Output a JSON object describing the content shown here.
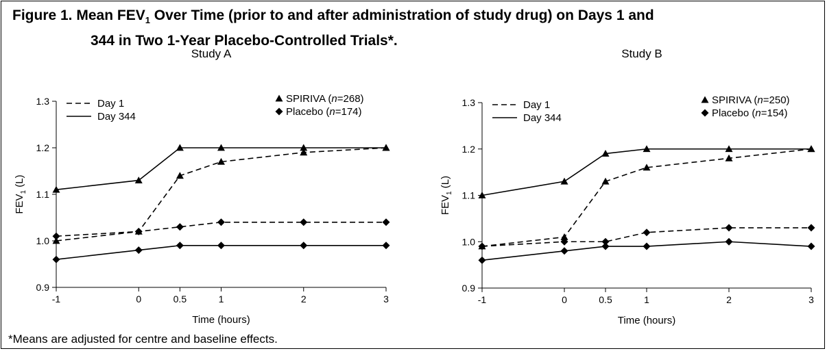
{
  "figure": {
    "title_prefix": "Figure 1. Mean FEV",
    "title_sub": "1",
    "title_line1_rest": " Over Time (prior to and after administration of study drug) on Days 1 and",
    "title_line2": "344 in Two 1-Year Placebo-Controlled Trials*.",
    "footnote": "*Means are adjusted for centre and baseline effects."
  },
  "chart_data": [
    {
      "type": "line",
      "title": "Study A",
      "xlabel": "Time (hours)",
      "ylabel_main": "FEV",
      "ylabel_sub": "1",
      "ylabel_unit": " (L)",
      "x": [
        -1,
        0,
        0.5,
        1,
        2,
        3
      ],
      "x_tick_labels": [
        "-1",
        "0",
        "0.5",
        "1",
        "2",
        "3"
      ],
      "ylim": [
        0.9,
        1.3
      ],
      "y_ticks": [
        0.9,
        1.0,
        1.1,
        1.2,
        1.3
      ],
      "y_tick_labels": [
        "0.9",
        "1.0",
        "1.1",
        "1.2",
        "1.3"
      ],
      "legend_lines": [
        {
          "label": "Day 1",
          "style": "dashed"
        },
        {
          "label": "Day 344",
          "style": "solid"
        }
      ],
      "legend_markers": [
        {
          "prefix": "SPIRIVA (",
          "n": "n",
          "suffix": "=268)",
          "marker": "triangle"
        },
        {
          "prefix": "Placebo (",
          "n": "n",
          "suffix": "=174)",
          "marker": "diamond"
        }
      ],
      "series": [
        {
          "group": "SPIRIVA",
          "day": "Day 1",
          "marker": "triangle",
          "style": "dashed",
          "values": [
            1.0,
            1.02,
            1.14,
            1.17,
            1.19,
            1.2
          ]
        },
        {
          "group": "SPIRIVA",
          "day": "Day 344",
          "marker": "triangle",
          "style": "solid",
          "values": [
            1.11,
            1.13,
            1.2,
            1.2,
            1.2,
            1.2
          ]
        },
        {
          "group": "Placebo",
          "day": "Day 1",
          "marker": "diamond",
          "style": "dashed",
          "values": [
            1.01,
            1.02,
            1.03,
            1.04,
            1.04,
            1.04
          ]
        },
        {
          "group": "Placebo",
          "day": "Day 344",
          "marker": "diamond",
          "style": "solid",
          "values": [
            0.96,
            0.98,
            0.99,
            0.99,
            0.99,
            0.99
          ]
        }
      ]
    },
    {
      "type": "line",
      "title": "Study B",
      "xlabel": "Time (hours)",
      "ylabel_main": "FEV",
      "ylabel_sub": "1",
      "ylabel_unit": " (L)",
      "x": [
        -1,
        0,
        0.5,
        1,
        2,
        3
      ],
      "x_tick_labels": [
        "-1",
        "0",
        "0.5",
        "1",
        "2",
        "3"
      ],
      "ylim": [
        0.9,
        1.3
      ],
      "y_ticks": [
        0.9,
        1.0,
        1.1,
        1.2,
        1.3
      ],
      "y_tick_labels": [
        "0.9",
        "1.0",
        "1.1",
        "1.2",
        "1.3"
      ],
      "legend_lines": [
        {
          "label": "Day 1",
          "style": "dashed"
        },
        {
          "label": "Day 344",
          "style": "solid"
        }
      ],
      "legend_markers": [
        {
          "prefix": "SPIRIVA (",
          "n": "n",
          "suffix": "=250)",
          "marker": "triangle"
        },
        {
          "prefix": "Placebo (",
          "n": "n",
          "suffix": "=154)",
          "marker": "diamond"
        }
      ],
      "series": [
        {
          "group": "SPIRIVA",
          "day": "Day 1",
          "marker": "triangle",
          "style": "dashed",
          "values": [
            0.99,
            1.01,
            1.13,
            1.16,
            1.18,
            1.2
          ]
        },
        {
          "group": "SPIRIVA",
          "day": "Day 344",
          "marker": "triangle",
          "style": "solid",
          "values": [
            1.1,
            1.13,
            1.19,
            1.2,
            1.2,
            1.2
          ]
        },
        {
          "group": "Placebo",
          "day": "Day 1",
          "marker": "diamond",
          "style": "dashed",
          "values": [
            0.99,
            1.0,
            1.0,
            1.02,
            1.03,
            1.03
          ]
        },
        {
          "group": "Placebo",
          "day": "Day 344",
          "marker": "diamond",
          "style": "solid",
          "values": [
            0.96,
            0.98,
            0.99,
            0.99,
            1.0,
            0.99
          ]
        }
      ]
    }
  ]
}
